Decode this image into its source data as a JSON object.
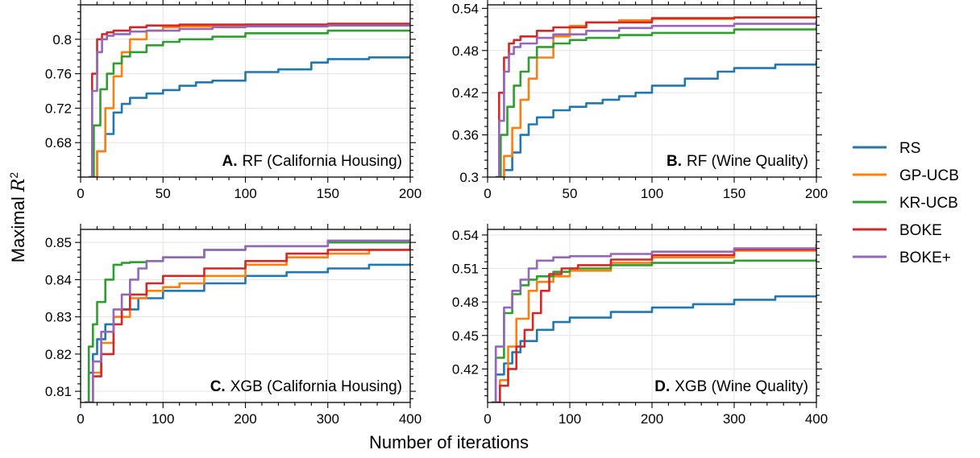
{
  "figure": {
    "ylabel_prefix": "Maximal ",
    "ylabel_var": "R",
    "ylabel_sup": "2",
    "xlabel": "Number of iterations"
  },
  "legend": [
    {
      "name": "RS",
      "color": "#1f77b4"
    },
    {
      "name": "GP-UCB",
      "color": "#ff7f0e"
    },
    {
      "name": "KR-UCB",
      "color": "#2ca02c"
    },
    {
      "name": "BOKE",
      "color": "#d62728"
    },
    {
      "name": "BOKE+",
      "color": "#9467bd"
    }
  ],
  "chart_data": [
    {
      "type": "line",
      "panel_letter": "A.",
      "panel_title": "RF (California Housing)",
      "xlim": [
        0,
        200
      ],
      "ylim": [
        0.64,
        0.84
      ],
      "xticks": [
        0,
        50,
        100,
        150,
        200
      ],
      "yticks": [
        0.68,
        0.72,
        0.76,
        0.8
      ],
      "ytick_labels": [
        "0.68",
        "0.72",
        "0.76",
        "0.8"
      ],
      "grid": true,
      "series": [
        {
          "name": "RS",
          "color": "#1f77b4",
          "x": [
            6,
            10,
            15,
            20,
            25,
            30,
            40,
            50,
            60,
            70,
            80,
            100,
            120,
            140,
            150,
            175,
            200
          ],
          "y": [
            0.64,
            0.67,
            0.69,
            0.715,
            0.725,
            0.732,
            0.737,
            0.741,
            0.746,
            0.75,
            0.752,
            0.762,
            0.765,
            0.773,
            0.777,
            0.779,
            0.782
          ]
        },
        {
          "name": "GP-UCB",
          "color": "#ff7f0e",
          "x": [
            6,
            10,
            15,
            20,
            25,
            30,
            40,
            50,
            60,
            80,
            100,
            150,
            200
          ],
          "y": [
            0.64,
            0.67,
            0.72,
            0.757,
            0.785,
            0.8,
            0.81,
            0.814,
            0.815,
            0.816,
            0.817,
            0.818,
            0.819
          ]
        },
        {
          "name": "KR-UCB",
          "color": "#2ca02c",
          "x": [
            5,
            8,
            12,
            16,
            20,
            25,
            30,
            40,
            50,
            60,
            80,
            100,
            150,
            200
          ],
          "y": [
            0.64,
            0.7,
            0.742,
            0.76,
            0.772,
            0.78,
            0.785,
            0.793,
            0.797,
            0.8,
            0.803,
            0.807,
            0.81,
            0.811
          ]
        },
        {
          "name": "BOKE",
          "color": "#d62728",
          "x": [
            5,
            7,
            10,
            13,
            16,
            20,
            30,
            40,
            60,
            100,
            150,
            200
          ],
          "y": [
            0.64,
            0.76,
            0.8,
            0.806,
            0.808,
            0.81,
            0.814,
            0.816,
            0.817,
            0.817,
            0.818,
            0.818
          ]
        },
        {
          "name": "BOKE+",
          "color": "#9467bd",
          "x": [
            5,
            7,
            10,
            13,
            16,
            20,
            30,
            40,
            60,
            80,
            100,
            150,
            200
          ],
          "y": [
            0.64,
            0.74,
            0.785,
            0.8,
            0.804,
            0.806,
            0.809,
            0.81,
            0.812,
            0.814,
            0.815,
            0.816,
            0.819
          ]
        }
      ]
    },
    {
      "type": "line",
      "panel_letter": "B.",
      "panel_title": "RF (Wine Quality)",
      "xlim": [
        0,
        200
      ],
      "ylim": [
        0.3,
        0.545
      ],
      "xticks": [
        0,
        50,
        100,
        150,
        200
      ],
      "yticks": [
        0.3,
        0.36,
        0.42,
        0.48,
        0.54
      ],
      "ytick_labels": [
        "0.3",
        "0.36",
        "0.42",
        "0.48",
        "0.54"
      ],
      "grid": true,
      "series": [
        {
          "name": "RS",
          "color": "#1f77b4",
          "x": [
            6,
            10,
            15,
            20,
            25,
            30,
            40,
            50,
            60,
            70,
            80,
            90,
            100,
            120,
            140,
            150,
            175,
            200
          ],
          "y": [
            0.3,
            0.31,
            0.335,
            0.36,
            0.375,
            0.385,
            0.395,
            0.4,
            0.405,
            0.41,
            0.415,
            0.42,
            0.43,
            0.44,
            0.45,
            0.455,
            0.46,
            0.465
          ]
        },
        {
          "name": "GP-UCB",
          "color": "#ff7f0e",
          "x": [
            6,
            10,
            15,
            20,
            25,
            30,
            40,
            50,
            60,
            80,
            100,
            150,
            200
          ],
          "y": [
            0.3,
            0.33,
            0.37,
            0.41,
            0.44,
            0.47,
            0.5,
            0.515,
            0.52,
            0.523,
            0.525,
            0.527,
            0.528
          ]
        },
        {
          "name": "KR-UCB",
          "color": "#2ca02c",
          "x": [
            5,
            8,
            12,
            16,
            20,
            25,
            30,
            40,
            50,
            60,
            80,
            100,
            150,
            200
          ],
          "y": [
            0.3,
            0.36,
            0.4,
            0.43,
            0.45,
            0.47,
            0.485,
            0.49,
            0.495,
            0.498,
            0.502,
            0.505,
            0.51,
            0.513
          ]
        },
        {
          "name": "BOKE",
          "color": "#d62728",
          "x": [
            5,
            7,
            10,
            13,
            16,
            20,
            30,
            40,
            60,
            100,
            150,
            200
          ],
          "y": [
            0.3,
            0.42,
            0.47,
            0.49,
            0.495,
            0.5,
            0.508,
            0.513,
            0.52,
            0.526,
            0.527,
            0.528
          ]
        },
        {
          "name": "BOKE+",
          "color": "#9467bd",
          "x": [
            5,
            7,
            10,
            13,
            16,
            20,
            30,
            40,
            60,
            80,
            100,
            150,
            200
          ],
          "y": [
            0.3,
            0.38,
            0.45,
            0.475,
            0.485,
            0.49,
            0.498,
            0.503,
            0.508,
            0.512,
            0.515,
            0.518,
            0.522
          ]
        }
      ]
    },
    {
      "type": "line",
      "panel_letter": "C.",
      "panel_title": "XGB (California Housing)",
      "xlim": [
        0,
        400
      ],
      "ylim": [
        0.807,
        0.8535
      ],
      "xticks": [
        0,
        100,
        200,
        300,
        400
      ],
      "yticks": [
        0.81,
        0.82,
        0.83,
        0.84,
        0.85
      ],
      "ytick_labels": [
        "0.81",
        "0.82",
        "0.83",
        "0.84",
        "0.85"
      ],
      "grid": true,
      "series": [
        {
          "name": "RS",
          "color": "#1f77b4",
          "x": [
            5,
            10,
            15,
            20,
            30,
            40,
            50,
            70,
            100,
            150,
            200,
            250,
            300,
            350,
            400
          ],
          "y": [
            0.807,
            0.815,
            0.82,
            0.824,
            0.828,
            0.83,
            0.832,
            0.835,
            0.837,
            0.839,
            0.841,
            0.842,
            0.843,
            0.844,
            0.8445
          ]
        },
        {
          "name": "GP-UCB",
          "color": "#ff7f0e",
          "x": [
            5,
            15,
            25,
            40,
            60,
            80,
            100,
            120,
            150,
            200,
            250,
            300,
            350,
            400
          ],
          "y": [
            0.807,
            0.815,
            0.823,
            0.83,
            0.835,
            0.837,
            0.838,
            0.839,
            0.841,
            0.844,
            0.846,
            0.847,
            0.848,
            0.849
          ]
        },
        {
          "name": "KR-UCB",
          "color": "#2ca02c",
          "x": [
            5,
            10,
            15,
            20,
            30,
            40,
            50,
            60,
            80,
            100,
            150,
            200,
            300,
            400
          ],
          "y": [
            0.807,
            0.822,
            0.828,
            0.834,
            0.84,
            0.844,
            0.8445,
            0.8447,
            0.845,
            0.846,
            0.848,
            0.849,
            0.85,
            0.85
          ]
        },
        {
          "name": "BOKE",
          "color": "#d62728",
          "x": [
            5,
            15,
            25,
            40,
            50,
            60,
            80,
            100,
            150,
            200,
            250,
            300,
            400
          ],
          "y": [
            0.807,
            0.814,
            0.82,
            0.828,
            0.832,
            0.836,
            0.839,
            0.841,
            0.843,
            0.845,
            0.847,
            0.848,
            0.8495
          ]
        },
        {
          "name": "BOKE+",
          "color": "#9467bd",
          "x": [
            5,
            15,
            25,
            40,
            50,
            60,
            70,
            80,
            100,
            150,
            200,
            300,
            400
          ],
          "y": [
            0.807,
            0.818,
            0.826,
            0.832,
            0.836,
            0.84,
            0.843,
            0.845,
            0.846,
            0.848,
            0.849,
            0.8505,
            0.851
          ]
        }
      ]
    },
    {
      "type": "line",
      "panel_letter": "D.",
      "panel_title": "XGB (Wine Quality)",
      "xlim": [
        0,
        400
      ],
      "ylim": [
        0.39,
        0.545
      ],
      "xticks": [
        0,
        100,
        200,
        300,
        400
      ],
      "yticks": [
        0.42,
        0.45,
        0.48,
        0.51,
        0.54
      ],
      "ytick_labels": [
        "0.42",
        "0.45",
        "0.48",
        "0.51",
        "0.54"
      ],
      "grid": true,
      "series": [
        {
          "name": "RS",
          "color": "#1f77b4",
          "x": [
            5,
            10,
            20,
            30,
            40,
            60,
            80,
            100,
            150,
            200,
            250,
            300,
            350,
            400
          ],
          "y": [
            0.39,
            0.415,
            0.425,
            0.435,
            0.445,
            0.455,
            0.462,
            0.466,
            0.471,
            0.475,
            0.478,
            0.482,
            0.485,
            0.486
          ]
        },
        {
          "name": "GP-UCB",
          "color": "#ff7f0e",
          "x": [
            5,
            15,
            25,
            35,
            50,
            60,
            80,
            100,
            150,
            200,
            300,
            400
          ],
          "y": [
            0.39,
            0.41,
            0.44,
            0.465,
            0.49,
            0.498,
            0.503,
            0.508,
            0.515,
            0.52,
            0.526,
            0.529
          ]
        },
        {
          "name": "KR-UCB",
          "color": "#2ca02c",
          "x": [
            5,
            10,
            20,
            30,
            40,
            50,
            60,
            80,
            100,
            150,
            200,
            300,
            400
          ],
          "y": [
            0.39,
            0.43,
            0.47,
            0.487,
            0.495,
            0.5,
            0.503,
            0.507,
            0.51,
            0.513,
            0.515,
            0.517,
            0.519
          ]
        },
        {
          "name": "BOKE",
          "color": "#d62728",
          "x": [
            5,
            15,
            25,
            35,
            45,
            55,
            65,
            75,
            90,
            110,
            150,
            200,
            300,
            400
          ],
          "y": [
            0.39,
            0.405,
            0.42,
            0.44,
            0.455,
            0.47,
            0.49,
            0.505,
            0.51,
            0.513,
            0.518,
            0.522,
            0.527,
            0.531
          ]
        },
        {
          "name": "BOKE+",
          "color": "#9467bd",
          "x": [
            5,
            10,
            20,
            30,
            40,
            50,
            60,
            80,
            100,
            150,
            200,
            300,
            400
          ],
          "y": [
            0.39,
            0.44,
            0.475,
            0.49,
            0.5,
            0.51,
            0.517,
            0.52,
            0.521,
            0.523,
            0.525,
            0.528,
            0.532
          ]
        }
      ]
    }
  ]
}
